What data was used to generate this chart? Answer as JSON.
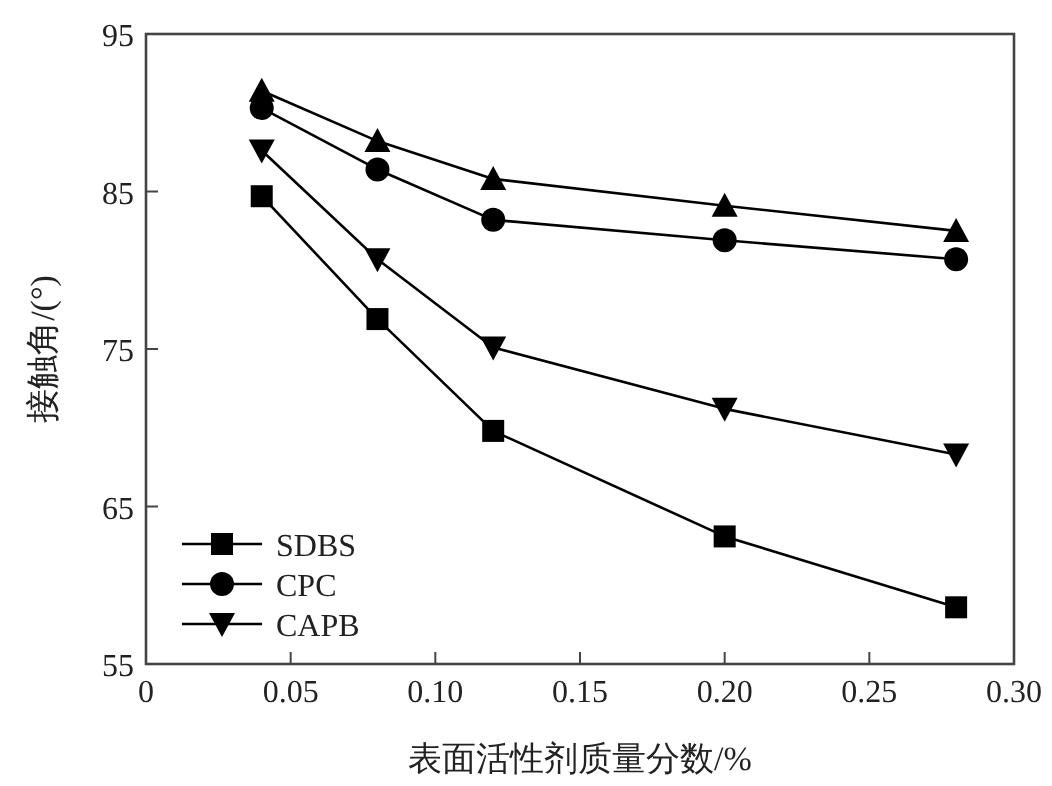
{
  "chart_data": {
    "type": "line",
    "xlabel": "表面活性剂质量分数/%",
    "ylabel": "接触角/(°)",
    "x": [
      0.04,
      0.08,
      0.12,
      0.2,
      0.28
    ],
    "series": [
      {
        "name": "SDBS",
        "color": "#000000",
        "marker": "square",
        "values": [
          84.7,
          76.9,
          69.8,
          63.1,
          58.6
        ]
      },
      {
        "name": "CPC",
        "color": "#000000",
        "marker": "circle",
        "values": [
          90.3,
          86.4,
          83.2,
          81.9,
          80.7
        ]
      },
      {
        "color": "#000000",
        "marker": "triangle",
        "values": [
          91.4,
          88.2,
          85.8,
          84.1,
          82.5
        ]
      },
      {
        "name": "CAPB",
        "color": "#000000",
        "marker": "triangle_down",
        "values": [
          87.6,
          80.7,
          75.1,
          71.2,
          68.3
        ]
      }
    ],
    "xlim": [
      0,
      0.3
    ],
    "ylim": [
      55,
      95
    ],
    "xticks": [
      0,
      0.05,
      {
        "value": 0.1,
        "label": "0.10"
      },
      0.15,
      {
        "value": 0.2,
        "label": "0.20"
      },
      0.25,
      {
        "value": 0.3,
        "label": "0.30"
      }
    ],
    "yticks": [
      55,
      65,
      75,
      85,
      95
    ],
    "grid": false,
    "legend": "bottom left",
    "line_style": "solid"
  }
}
